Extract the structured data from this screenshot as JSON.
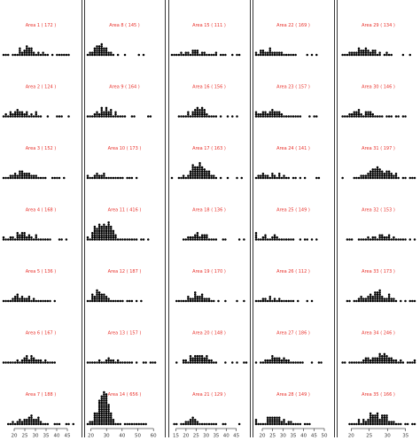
{
  "chart_data": {
    "type": "dot-plot-grid",
    "layout": {
      "columns": 5,
      "rows": 7,
      "order": "column-major"
    },
    "columns": [
      {
        "xlim": [
          15,
          50
        ],
        "ticks": [
          20,
          25,
          30,
          35,
          40,
          45
        ]
      },
      {
        "xlim": [
          18,
          65
        ],
        "ticks": [
          20,
          30,
          40,
          50,
          60
        ]
      },
      {
        "xlim": [
          13,
          50
        ],
        "ticks": [
          15,
          20,
          25,
          30,
          35,
          40,
          45
        ]
      },
      {
        "xlim": [
          17,
          53
        ],
        "ticks": [
          20,
          25,
          30,
          35,
          40,
          45,
          50
        ]
      },
      {
        "xlim": [
          17,
          38
        ],
        "ticks": [
          20,
          25,
          30,
          35
        ]
      }
    ],
    "panels": [
      {
        "title": "Area 1 ( 172 )",
        "n": 172,
        "center": 26,
        "spread": 4.5,
        "max_stack": 5
      },
      {
        "title": "Area 2 ( 124 )",
        "n": 124,
        "center": 24,
        "spread": 5,
        "max_stack": 4
      },
      {
        "title": "Area 3 ( 152 )",
        "n": 152,
        "center": 25,
        "spread": 4.5,
        "max_stack": 4
      },
      {
        "title": "Area 4 ( 168 )",
        "n": 168,
        "center": 24,
        "spread": 5,
        "max_stack": 4
      },
      {
        "title": "Area 5 ( 136 )",
        "n": 136,
        "center": 25,
        "spread": 4.5,
        "max_stack": 4
      },
      {
        "title": "Area 6 ( 167 )",
        "n": 167,
        "center": 28,
        "spread": 6,
        "max_stack": 4
      },
      {
        "title": "Area 7 ( 188 )",
        "n": 188,
        "center": 27,
        "spread": 5,
        "max_stack": 5
      },
      {
        "title": "Area 8 ( 145 )",
        "n": 145,
        "center": 26,
        "spread": 4,
        "max_stack": 6
      },
      {
        "title": "Area 9 ( 164 )",
        "n": 164,
        "center": 29,
        "spread": 5,
        "max_stack": 5
      },
      {
        "title": "Area 10 ( 173 )",
        "n": 173,
        "center": 28,
        "spread": 6,
        "max_stack": 3
      },
      {
        "title": "Area 11 ( 416 )",
        "n": 416,
        "center": 28,
        "spread": 5,
        "max_stack": 9
      },
      {
        "title": "Area 12 ( 187 )",
        "n": 187,
        "center": 26,
        "spread": 4,
        "max_stack": 6
      },
      {
        "title": "Area 13 ( 157 )",
        "n": 157,
        "center": 32,
        "spread": 6,
        "max_stack": 3
      },
      {
        "title": "Area 14 ( 656 )",
        "n": 656,
        "center": 28,
        "spread": 3.5,
        "max_stack": 16
      },
      {
        "title": "Area 15 ( 111 )",
        "n": 111,
        "center": 25,
        "spread": 5,
        "max_stack": 3
      },
      {
        "title": "Area 16 ( 156 )",
        "n": 156,
        "center": 27,
        "spread": 4,
        "max_stack": 5
      },
      {
        "title": "Area 17 ( 163 )",
        "n": 163,
        "center": 26,
        "spread": 4,
        "max_stack": 8
      },
      {
        "title": "Area 18 ( 136 )",
        "n": 136,
        "center": 26,
        "spread": 4,
        "max_stack": 4
      },
      {
        "title": "Area 19 ( 170 )",
        "n": 170,
        "center": 26,
        "spread": 4,
        "max_stack": 5
      },
      {
        "title": "Area 20 ( 148 )",
        "n": 148,
        "center": 27,
        "spread": 4.5,
        "max_stack": 4
      },
      {
        "title": "Area 21 ( 129 )",
        "n": 129,
        "center": 24,
        "spread": 4.5,
        "max_stack": 4
      },
      {
        "title": "Area 22 ( 169 )",
        "n": 169,
        "center": 24,
        "spread": 4.5,
        "max_stack": 4
      },
      {
        "title": "Area 23 ( 157 )",
        "n": 157,
        "center": 24,
        "spread": 5,
        "max_stack": 4
      },
      {
        "title": "Area 24 ( 141 )",
        "n": 141,
        "center": 25,
        "spread": 5,
        "max_stack": 3
      },
      {
        "title": "Area 25 ( 149 )",
        "n": 149,
        "center": 24,
        "spread": 5,
        "max_stack": 4
      },
      {
        "title": "Area 26 ( 112 )",
        "n": 112,
        "center": 25,
        "spread": 5,
        "max_stack": 3
      },
      {
        "title": "Area 27 ( 186 )",
        "n": 186,
        "center": 27,
        "spread": 4.5,
        "max_stack": 4
      },
      {
        "title": "Area 28 ( 149 )",
        "n": 149,
        "center": 26,
        "spread": 5,
        "max_stack": 4
      },
      {
        "title": "Area 29 ( 134 )",
        "n": 134,
        "center": 24,
        "spread": 3,
        "max_stack": 4
      },
      {
        "title": "Area 30 ( 146 )",
        "n": 146,
        "center": 23,
        "spread": 3,
        "max_stack": 4
      },
      {
        "title": "Area 31 ( 197 )",
        "n": 197,
        "center": 28,
        "spread": 3,
        "max_stack": 6
      },
      {
        "title": "Area 32 ( 153 )",
        "n": 153,
        "center": 28,
        "spread": 3.5,
        "max_stack": 3
      },
      {
        "title": "Area 33 ( 173 )",
        "n": 173,
        "center": 27,
        "spread": 3,
        "max_stack": 6
      },
      {
        "title": "Area 34 ( 246 )",
        "n": 246,
        "center": 28,
        "spread": 3.5,
        "max_stack": 5
      },
      {
        "title": "Area 35 ( 166 )",
        "n": 166,
        "center": 27,
        "spread": 3,
        "max_stack": 6
      }
    ]
  }
}
